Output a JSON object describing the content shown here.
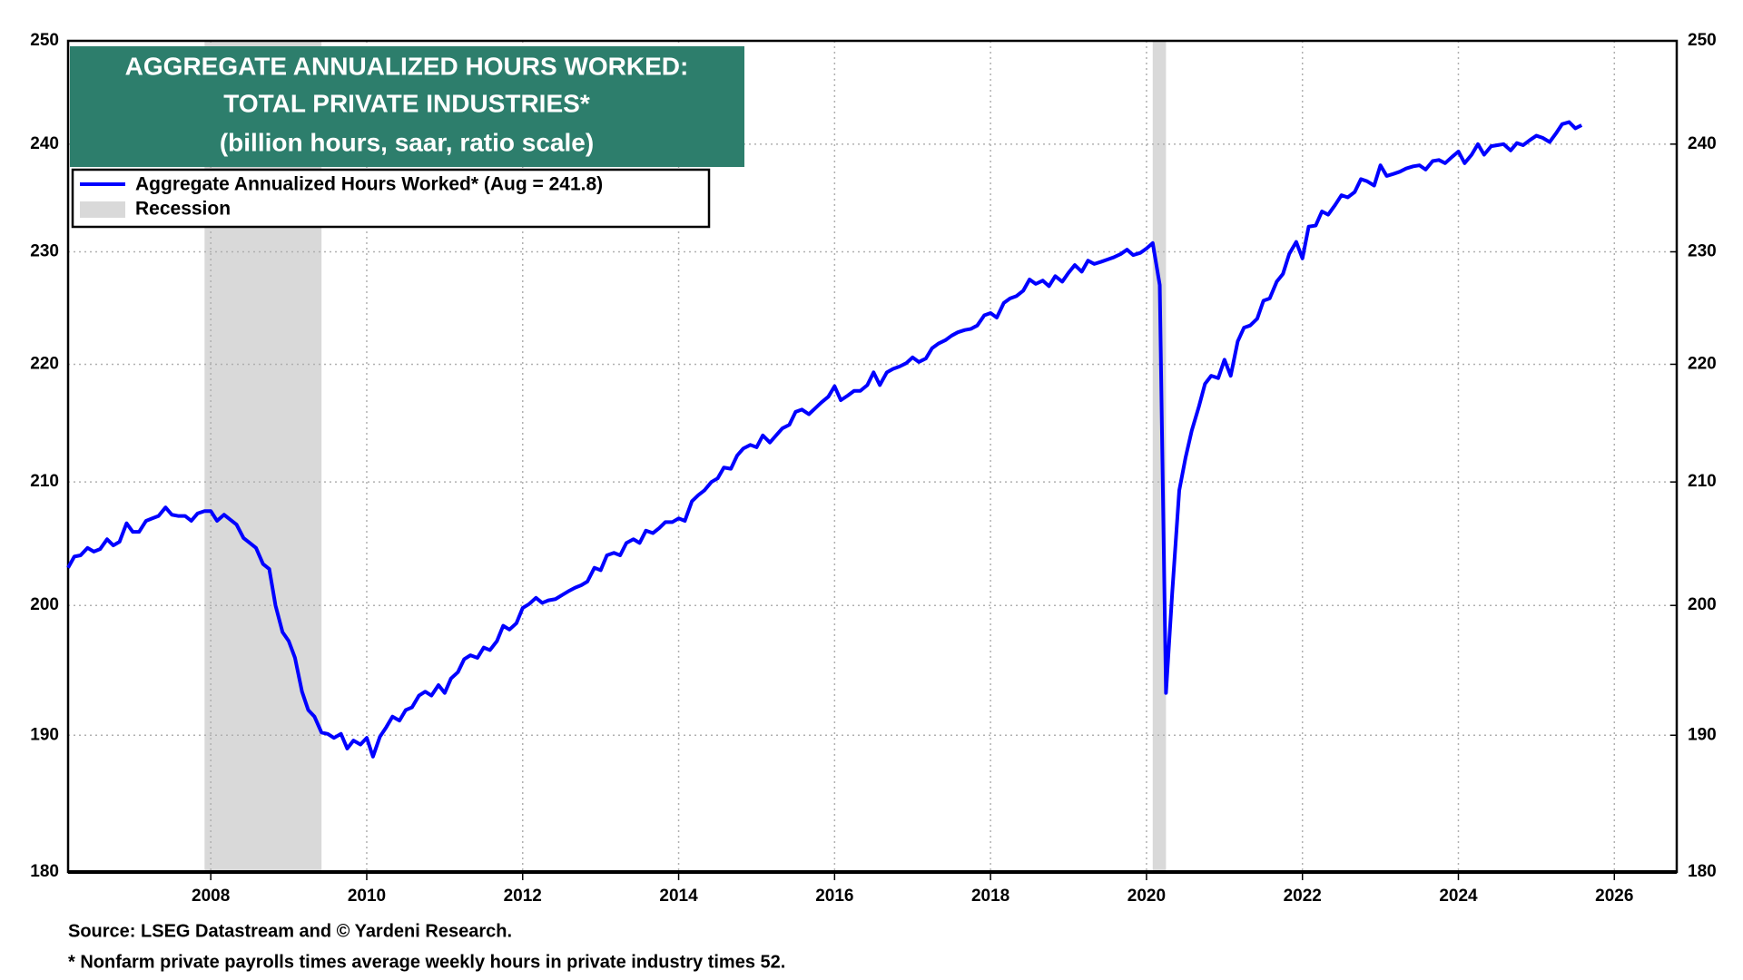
{
  "chart_data": {
    "type": "line",
    "title": [
      "AGGREGATE ANNUALIZED HOURS WORKED:",
      "TOTAL PRIVATE INDUSTRIES*"
    ],
    "subtitle": "(billion hours, saar, ratio scale)",
    "source": "Source: LSEG Datastream and © Yardeni Research.",
    "note": "* Nonfarm private payrolls times average weekly hours in private industry times 52.",
    "log_scale": true,
    "grid": true,
    "legend_position": "upper-left",
    "title_color": "#2d7e6c",
    "xlim": [
      2006.17,
      2026.8
    ],
    "xticks": [
      2008,
      2010,
      2012,
      2014,
      2016,
      2018,
      2020,
      2022,
      2024,
      2026
    ],
    "ylim": [
      180,
      250
    ],
    "yticks": [
      180,
      190,
      200,
      210,
      220,
      230,
      240,
      250
    ],
    "y2lim": [
      180,
      250
    ],
    "y2ticks": [
      180,
      190,
      200,
      210,
      220,
      230,
      240,
      250
    ],
    "recessions": {
      "name": "Recession",
      "color": "#d9d9d9",
      "spans": [
        [
          2007.92,
          2009.42
        ],
        [
          2020.08,
          2020.25
        ]
      ]
    },
    "x": [
      2006.17,
      2006.25,
      2006.33,
      2006.42,
      2006.5,
      2006.58,
      2006.67,
      2006.75,
      2006.83,
      2006.92,
      2007.0,
      2007.08,
      2007.17,
      2007.25,
      2007.33,
      2007.42,
      2007.5,
      2007.58,
      2007.67,
      2007.75,
      2007.83,
      2007.92,
      2008.0,
      2008.08,
      2008.17,
      2008.25,
      2008.33,
      2008.42,
      2008.5,
      2008.58,
      2008.67,
      2008.75,
      2008.83,
      2008.92,
      2009.0,
      2009.08,
      2009.17,
      2009.25,
      2009.33,
      2009.42,
      2009.5,
      2009.58,
      2009.67,
      2009.75,
      2009.83,
      2009.92,
      2010.0,
      2010.08,
      2010.17,
      2010.25,
      2010.33,
      2010.42,
      2010.5,
      2010.58,
      2010.67,
      2010.75,
      2010.83,
      2010.92,
      2011.0,
      2011.08,
      2011.17,
      2011.25,
      2011.33,
      2011.42,
      2011.5,
      2011.58,
      2011.67,
      2011.75,
      2011.83,
      2011.92,
      2012.0,
      2012.08,
      2012.17,
      2012.25,
      2012.33,
      2012.42,
      2012.5,
      2012.58,
      2012.67,
      2012.75,
      2012.83,
      2012.92,
      2013.0,
      2013.08,
      2013.17,
      2013.25,
      2013.33,
      2013.42,
      2013.5,
      2013.58,
      2013.67,
      2013.75,
      2013.83,
      2013.92,
      2014.0,
      2014.08,
      2014.17,
      2014.25,
      2014.33,
      2014.42,
      2014.5,
      2014.58,
      2014.67,
      2014.75,
      2014.83,
      2014.92,
      2015.0,
      2015.08,
      2015.17,
      2015.25,
      2015.33,
      2015.42,
      2015.5,
      2015.58,
      2015.67,
      2015.75,
      2015.83,
      2015.92,
      2016.0,
      2016.08,
      2016.17,
      2016.25,
      2016.33,
      2016.42,
      2016.5,
      2016.58,
      2016.67,
      2016.75,
      2016.83,
      2016.92,
      2017.0,
      2017.08,
      2017.17,
      2017.25,
      2017.33,
      2017.42,
      2017.5,
      2017.58,
      2017.67,
      2017.75,
      2017.83,
      2017.92,
      2018.0,
      2018.08,
      2018.17,
      2018.25,
      2018.33,
      2018.42,
      2018.5,
      2018.58,
      2018.67,
      2018.75,
      2018.83,
      2018.92,
      2019.0,
      2019.08,
      2019.17,
      2019.25,
      2019.33,
      2019.42,
      2019.5,
      2019.58,
      2019.67,
      2019.75,
      2019.83,
      2019.92,
      2020.0,
      2020.08,
      2020.17,
      2020.25,
      2020.33,
      2020.42,
      2020.5,
      2020.58,
      2020.67,
      2020.75,
      2020.83,
      2020.92,
      2021.0,
      2021.08,
      2021.17,
      2021.25,
      2021.33,
      2021.42,
      2021.5,
      2021.58,
      2021.67,
      2021.75,
      2021.83,
      2021.92,
      2022.0,
      2022.08,
      2022.17,
      2022.25,
      2022.33,
      2022.42,
      2022.5,
      2022.58,
      2022.67,
      2022.75,
      2022.83,
      2022.92,
      2023.0,
      2023.08,
      2023.17,
      2023.25,
      2023.33,
      2023.42,
      2023.5,
      2023.58,
      2023.67,
      2023.75,
      2023.83,
      2023.92,
      2024.0,
      2024.08,
      2024.17,
      2024.25,
      2024.33,
      2024.42,
      2024.5,
      2024.58,
      2024.67,
      2024.75,
      2024.83,
      2024.92,
      2025.0,
      2025.08,
      2025.17,
      2025.25,
      2025.33,
      2025.42,
      2025.5,
      2025.58
    ],
    "series": [
      {
        "name": "Aggregate Annualized Hours Worked* (Aug = 241.8)",
        "color": "#0000ff",
        "values": [
          203.0,
          203.9,
          204.0,
          204.6,
          204.3,
          204.5,
          205.3,
          204.8,
          205.1,
          206.6,
          205.9,
          205.9,
          206.8,
          207.0,
          207.2,
          207.9,
          207.3,
          207.2,
          207.2,
          206.8,
          207.4,
          207.6,
          207.6,
          206.8,
          207.3,
          206.9,
          206.5,
          205.4,
          205.0,
          204.6,
          203.3,
          202.9,
          200.0,
          197.9,
          197.2,
          195.9,
          193.3,
          191.9,
          191.4,
          190.2,
          190.1,
          189.8,
          190.1,
          189.0,
          189.6,
          189.3,
          189.8,
          188.4,
          189.9,
          190.6,
          191.4,
          191.1,
          191.9,
          192.1,
          193.0,
          193.3,
          193.0,
          193.8,
          193.2,
          194.3,
          194.8,
          195.8,
          196.1,
          195.9,
          196.7,
          196.5,
          197.2,
          198.4,
          198.1,
          198.6,
          199.8,
          200.1,
          200.6,
          200.2,
          200.4,
          200.5,
          200.8,
          201.1,
          201.4,
          201.6,
          201.9,
          203.0,
          202.8,
          204.0,
          204.2,
          204.0,
          205.0,
          205.3,
          205.0,
          206.0,
          205.8,
          206.2,
          206.7,
          206.7,
          207.0,
          206.8,
          208.4,
          208.9,
          209.3,
          210.0,
          210.3,
          211.2,
          211.1,
          212.2,
          212.8,
          213.1,
          212.9,
          213.9,
          213.3,
          213.9,
          214.5,
          214.8,
          215.9,
          216.1,
          215.7,
          216.2,
          216.7,
          217.2,
          218.1,
          216.9,
          217.3,
          217.7,
          217.7,
          218.2,
          219.3,
          218.2,
          219.3,
          219.6,
          219.8,
          220.1,
          220.6,
          220.2,
          220.5,
          221.4,
          221.8,
          222.1,
          222.5,
          222.8,
          223.0,
          223.1,
          223.4,
          224.3,
          224.5,
          224.1,
          225.4,
          225.8,
          226.0,
          226.5,
          227.5,
          227.1,
          227.4,
          226.9,
          227.8,
          227.3,
          228.1,
          228.8,
          228.2,
          229.2,
          228.9,
          229.1,
          229.3,
          229.5,
          229.8,
          230.2,
          229.7,
          229.9,
          230.3,
          230.8,
          227.0,
          193.2,
          201.0,
          209.3,
          212.0,
          214.3,
          216.3,
          218.3,
          219.0,
          218.8,
          220.4,
          219.0,
          222.0,
          223.2,
          223.4,
          224.0,
          225.6,
          225.8,
          227.3,
          228.0,
          229.8,
          230.9,
          229.4,
          232.3,
          232.4,
          233.7,
          233.4,
          234.3,
          235.2,
          235.0,
          235.5,
          236.7,
          236.5,
          236.1,
          238.0,
          237.0,
          237.2,
          237.4,
          237.7,
          237.9,
          238.0,
          237.6,
          238.4,
          238.5,
          238.2,
          238.8,
          239.3,
          238.2,
          239.0,
          240.0,
          239.0,
          239.8,
          239.9,
          240.0,
          239.4,
          240.1,
          239.9,
          240.4,
          240.8,
          240.6,
          240.2,
          241.0,
          241.9,
          242.1,
          241.5,
          241.8
        ]
      }
    ]
  }
}
